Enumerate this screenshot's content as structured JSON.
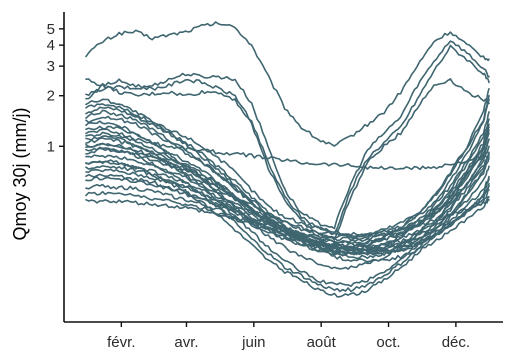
{
  "colors": {
    "line": "#3f6670",
    "axis": "#111111",
    "text": "#2b2b2b",
    "background": "#ffffff"
  },
  "chart_data": {
    "type": "line",
    "title": "",
    "xlabel": "",
    "ylabel": "Qmoy 30j (mm/j)",
    "yscale": "log",
    "grid": false,
    "legend": "none",
    "xlim": [
      0,
      365
    ],
    "ylim": [
      0.09,
      6.3
    ],
    "x_ticks": [
      {
        "label": "févr.",
        "x": 32
      },
      {
        "label": "avr.",
        "x": 91
      },
      {
        "label": "juin",
        "x": 152
      },
      {
        "label": "août",
        "x": 213
      },
      {
        "label": "oct.",
        "x": 274
      },
      {
        "label": "déc.",
        "x": 335
      }
    ],
    "y_ticks": [
      {
        "label": "1",
        "y": 1
      },
      {
        "label": "2",
        "y": 2
      },
      {
        "label": "3",
        "y": 3
      },
      {
        "label": "4",
        "y": 4
      },
      {
        "label": "5",
        "y": 5
      }
    ],
    "x": [
      0,
      15,
      30,
      45,
      60,
      75,
      90,
      105,
      120,
      135,
      150,
      165,
      180,
      195,
      210,
      225,
      240,
      255,
      270,
      285,
      300,
      315,
      330,
      345,
      360,
      365
    ],
    "series": [
      {
        "values": [
          3.5,
          4.2,
          4.7,
          4.8,
          4.4,
          4.6,
          4.8,
          5.2,
          5.4,
          5.1,
          4.0,
          2.6,
          1.7,
          1.3,
          1.1,
          1.0,
          1.15,
          1.35,
          1.6,
          2.1,
          3.0,
          4.2,
          4.8,
          4.0,
          3.4,
          3.3
        ]
      },
      {
        "values": [
          2.0,
          2.2,
          2.25,
          2.2,
          2.3,
          2.5,
          2.7,
          2.6,
          2.6,
          2.5,
          1.8,
          1.0,
          0.55,
          0.4,
          0.35,
          0.33,
          0.6,
          0.95,
          1.2,
          1.5,
          2.3,
          3.2,
          4.3,
          3.6,
          2.9,
          2.6
        ]
      },
      {
        "values": [
          1.9,
          2.3,
          2.45,
          2.3,
          2.2,
          2.3,
          2.5,
          2.4,
          2.2,
          2.0,
          1.4,
          0.8,
          0.5,
          0.38,
          0.33,
          0.3,
          0.55,
          0.85,
          1.05,
          1.3,
          1.9,
          2.8,
          3.9,
          3.3,
          2.7,
          2.4
        ]
      },
      {
        "values": [
          2.5,
          2.3,
          2.1,
          2.0,
          2.05,
          2.1,
          2.0,
          2.1,
          2.1,
          1.9,
          1.35,
          0.75,
          0.48,
          0.36,
          0.3,
          0.28,
          0.5,
          0.8,
          1.0,
          1.2,
          1.7,
          2.3,
          2.5,
          2.1,
          1.9,
          1.8
        ]
      },
      {
        "values": [
          1.2,
          1.25,
          1.2,
          1.1,
          1.05,
          1.0,
          0.97,
          0.95,
          0.92,
          0.9,
          0.88,
          0.85,
          0.83,
          0.8,
          0.79,
          0.78,
          0.77,
          0.75,
          0.74,
          0.74,
          0.74,
          0.75,
          0.78,
          0.82,
          0.86,
          0.87
        ]
      },
      {
        "values": [
          1.8,
          1.9,
          1.8,
          1.6,
          1.4,
          1.25,
          1.15,
          1.0,
          0.85,
          0.7,
          0.55,
          0.44,
          0.38,
          0.35,
          0.33,
          0.31,
          0.3,
          0.3,
          0.32,
          0.35,
          0.4,
          0.5,
          0.7,
          1.0,
          1.6,
          2.2
        ]
      },
      {
        "values": [
          1.6,
          1.7,
          1.65,
          1.5,
          1.35,
          1.2,
          1.05,
          0.9,
          0.75,
          0.62,
          0.5,
          0.41,
          0.35,
          0.32,
          0.3,
          0.28,
          0.28,
          0.29,
          0.31,
          0.33,
          0.38,
          0.46,
          0.62,
          0.9,
          1.4,
          1.9
        ]
      },
      {
        "values": [
          1.4,
          1.5,
          1.45,
          1.35,
          1.2,
          1.05,
          0.92,
          0.8,
          0.68,
          0.56,
          0.46,
          0.38,
          0.33,
          0.3,
          0.28,
          0.27,
          0.27,
          0.28,
          0.3,
          0.32,
          0.36,
          0.44,
          0.58,
          0.82,
          1.2,
          1.6
        ]
      },
      {
        "values": [
          1.25,
          1.3,
          1.28,
          1.18,
          1.05,
          0.92,
          0.82,
          0.72,
          0.61,
          0.51,
          0.42,
          0.36,
          0.31,
          0.28,
          0.26,
          0.25,
          0.25,
          0.26,
          0.28,
          0.3,
          0.34,
          0.41,
          0.53,
          0.72,
          1.05,
          1.35
        ]
      },
      {
        "values": [
          1.15,
          1.18,
          1.15,
          1.08,
          0.98,
          0.87,
          0.78,
          0.69,
          0.59,
          0.5,
          0.42,
          0.36,
          0.32,
          0.29,
          0.27,
          0.26,
          0.26,
          0.27,
          0.28,
          0.3,
          0.33,
          0.39,
          0.5,
          0.67,
          0.95,
          1.2
        ]
      },
      {
        "values": [
          1.05,
          1.1,
          1.07,
          1.0,
          0.92,
          0.83,
          0.75,
          0.67,
          0.58,
          0.5,
          0.43,
          0.37,
          0.33,
          0.3,
          0.28,
          0.27,
          0.27,
          0.27,
          0.29,
          0.31,
          0.34,
          0.4,
          0.5,
          0.65,
          0.9,
          1.1
        ]
      },
      {
        "values": [
          1.0,
          1.03,
          1.0,
          0.95,
          0.88,
          0.8,
          0.73,
          0.65,
          0.57,
          0.49,
          0.42,
          0.36,
          0.32,
          0.29,
          0.27,
          0.26,
          0.25,
          0.25,
          0.26,
          0.28,
          0.31,
          0.36,
          0.45,
          0.6,
          0.82,
          1.0
        ]
      },
      {
        "values": [
          0.92,
          0.96,
          0.94,
          0.89,
          0.83,
          0.76,
          0.69,
          0.62,
          0.55,
          0.48,
          0.41,
          0.36,
          0.32,
          0.29,
          0.27,
          0.26,
          0.25,
          0.25,
          0.26,
          0.27,
          0.3,
          0.35,
          0.43,
          0.56,
          0.75,
          0.92
        ]
      },
      {
        "values": [
          0.85,
          0.88,
          0.86,
          0.82,
          0.77,
          0.71,
          0.65,
          0.59,
          0.52,
          0.46,
          0.4,
          0.35,
          0.31,
          0.28,
          0.26,
          0.25,
          0.24,
          0.24,
          0.25,
          0.26,
          0.29,
          0.33,
          0.4,
          0.52,
          0.7,
          0.85
        ]
      },
      {
        "values": [
          0.78,
          0.8,
          0.79,
          0.75,
          0.71,
          0.66,
          0.61,
          0.55,
          0.5,
          0.44,
          0.39,
          0.34,
          0.31,
          0.28,
          0.26,
          0.25,
          0.24,
          0.24,
          0.24,
          0.26,
          0.28,
          0.32,
          0.38,
          0.48,
          0.62,
          0.76
        ]
      },
      {
        "values": [
          0.7,
          0.72,
          0.71,
          0.68,
          0.65,
          0.61,
          0.57,
          0.52,
          0.47,
          0.42,
          0.37,
          0.33,
          0.3,
          0.27,
          0.25,
          0.24,
          0.23,
          0.23,
          0.24,
          0.25,
          0.27,
          0.3,
          0.36,
          0.44,
          0.55,
          0.66
        ]
      },
      {
        "values": [
          0.63,
          0.65,
          0.64,
          0.62,
          0.59,
          0.56,
          0.52,
          0.48,
          0.44,
          0.4,
          0.36,
          0.32,
          0.29,
          0.26,
          0.24,
          0.23,
          0.22,
          0.22,
          0.23,
          0.24,
          0.26,
          0.29,
          0.34,
          0.41,
          0.5,
          0.6
        ]
      },
      {
        "values": [
          0.57,
          0.58,
          0.57,
          0.56,
          0.54,
          0.51,
          0.48,
          0.45,
          0.42,
          0.38,
          0.35,
          0.32,
          0.29,
          0.27,
          0.25,
          0.24,
          0.23,
          0.23,
          0.24,
          0.25,
          0.27,
          0.3,
          0.34,
          0.4,
          0.47,
          0.55
        ]
      },
      {
        "values": [
          0.52,
          0.53,
          0.52,
          0.51,
          0.49,
          0.47,
          0.45,
          0.43,
          0.4,
          0.37,
          0.34,
          0.31,
          0.28,
          0.26,
          0.24,
          0.22,
          0.21,
          0.21,
          0.21,
          0.22,
          0.24,
          0.27,
          0.31,
          0.37,
          0.44,
          0.5
        ]
      },
      {
        "values": [
          0.47,
          0.47,
          0.47,
          0.46,
          0.45,
          0.44,
          0.43,
          0.41,
          0.39,
          0.37,
          0.35,
          0.33,
          0.31,
          0.3,
          0.29,
          0.29,
          0.29,
          0.3,
          0.31,
          0.32,
          0.34,
          0.36,
          0.39,
          0.42,
          0.46,
          0.48
        ]
      },
      {
        "values": [
          1.1,
          1.15,
          1.1,
          1.0,
          0.9,
          0.79,
          0.68,
          0.57,
          0.47,
          0.38,
          0.31,
          0.25,
          0.21,
          0.18,
          0.16,
          0.15,
          0.15,
          0.16,
          0.18,
          0.21,
          0.26,
          0.34,
          0.47,
          0.68,
          1.0,
          1.3
        ]
      },
      {
        "values": [
          0.95,
          0.98,
          0.95,
          0.88,
          0.79,
          0.7,
          0.61,
          0.52,
          0.43,
          0.35,
          0.28,
          0.23,
          0.19,
          0.17,
          0.15,
          0.14,
          0.14,
          0.15,
          0.17,
          0.2,
          0.24,
          0.31,
          0.42,
          0.6,
          0.86,
          1.1
        ]
      },
      {
        "values": [
          0.8,
          0.82,
          0.8,
          0.75,
          0.68,
          0.61,
          0.54,
          0.46,
          0.39,
          0.32,
          0.26,
          0.21,
          0.18,
          0.16,
          0.14,
          0.13,
          0.13,
          0.14,
          0.16,
          0.19,
          0.23,
          0.29,
          0.38,
          0.52,
          0.72,
          0.9
        ]
      },
      {
        "values": [
          1.35,
          1.4,
          1.33,
          1.2,
          1.05,
          0.9,
          0.76,
          0.63,
          0.52,
          0.43,
          0.35,
          0.29,
          0.25,
          0.22,
          0.2,
          0.19,
          0.19,
          0.2,
          0.22,
          0.25,
          0.3,
          0.38,
          0.5,
          0.7,
          0.98,
          1.25
        ]
      },
      {
        "values": [
          1.5,
          1.6,
          1.55,
          1.42,
          1.27,
          1.1,
          0.95,
          0.81,
          0.68,
          0.56,
          0.46,
          0.38,
          0.32,
          0.28,
          0.25,
          0.23,
          0.23,
          0.24,
          0.26,
          0.29,
          0.34,
          0.42,
          0.55,
          0.78,
          1.12,
          1.45
        ]
      },
      {
        "values": [
          1.0,
          1.02,
          0.99,
          0.93,
          0.86,
          0.79,
          0.72,
          0.65,
          0.58,
          0.51,
          0.45,
          0.4,
          0.36,
          0.33,
          0.31,
          0.3,
          0.29,
          0.29,
          0.3,
          0.32,
          0.35,
          0.4,
          0.48,
          0.6,
          0.76,
          0.9
        ]
      },
      {
        "values": [
          0.74,
          0.76,
          0.75,
          0.72,
          0.68,
          0.63,
          0.58,
          0.53,
          0.48,
          0.43,
          0.38,
          0.34,
          0.31,
          0.28,
          0.26,
          0.24,
          0.23,
          0.23,
          0.23,
          0.24,
          0.26,
          0.29,
          0.34,
          0.41,
          0.52,
          0.64
        ]
      },
      {
        "values": [
          0.66,
          0.67,
          0.66,
          0.64,
          0.61,
          0.57,
          0.53,
          0.49,
          0.45,
          0.41,
          0.37,
          0.33,
          0.3,
          0.28,
          0.26,
          0.25,
          0.24,
          0.24,
          0.25,
          0.26,
          0.28,
          0.31,
          0.35,
          0.41,
          0.49,
          0.58
        ]
      },
      {
        "values": [
          1.7,
          1.8,
          1.7,
          1.55,
          1.38,
          1.2,
          1.03,
          0.87,
          0.72,
          0.59,
          0.48,
          0.39,
          0.33,
          0.29,
          0.26,
          0.25,
          0.25,
          0.26,
          0.29,
          0.33,
          0.39,
          0.5,
          0.68,
          0.98,
          1.45,
          2.0
        ]
      }
    ]
  }
}
